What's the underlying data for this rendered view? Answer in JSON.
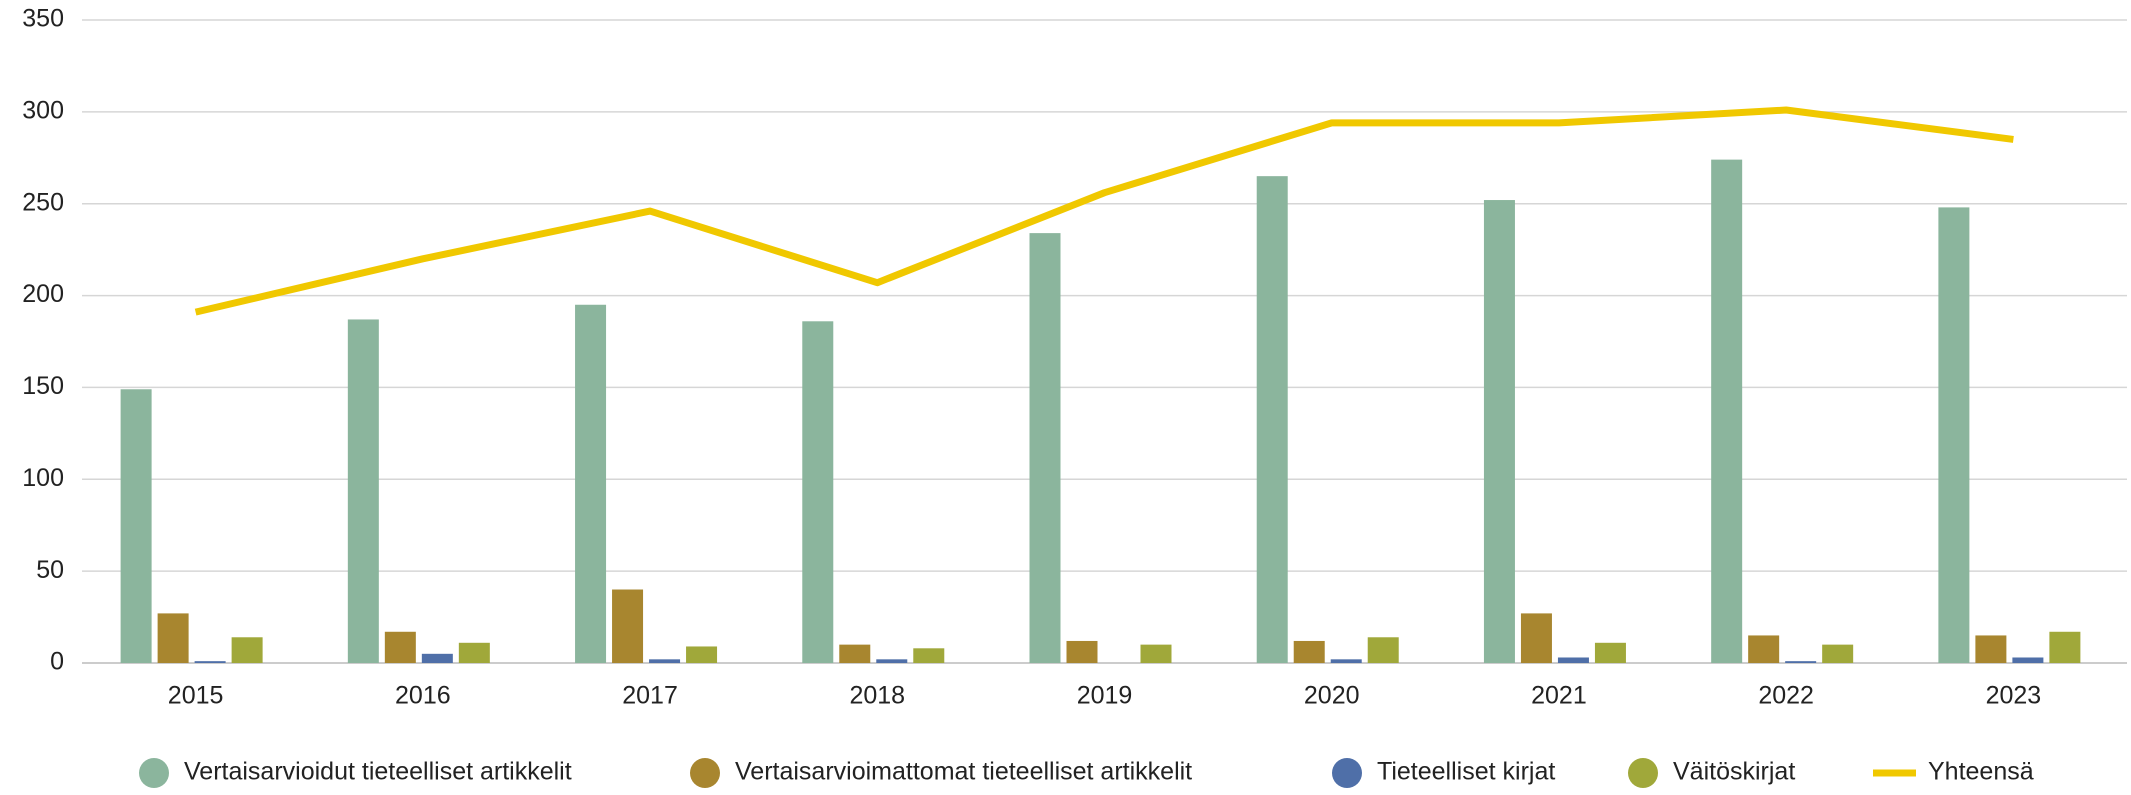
{
  "chart_data": {
    "type": "bar",
    "categories": [
      "2015",
      "2016",
      "2017",
      "2018",
      "2019",
      "2020",
      "2021",
      "2022",
      "2023"
    ],
    "series": [
      {
        "name": "Vertaisarvioidut tieteelliset artikkelit",
        "color": "#8bb59d",
        "type": "bar",
        "values": [
          149,
          187,
          195,
          186,
          234,
          265,
          252,
          274,
          248
        ]
      },
      {
        "name": "Vertaisarvioimattomat tieteelliset artikkelit",
        "color": "#a8862f",
        "type": "bar",
        "values": [
          27,
          17,
          40,
          10,
          12,
          12,
          27,
          15,
          15
        ]
      },
      {
        "name": "Tieteelliset kirjat",
        "color": "#4f6fa8",
        "type": "bar",
        "values": [
          1,
          5,
          2,
          2,
          0,
          2,
          3,
          1,
          3
        ]
      },
      {
        "name": "Väitöskirjat",
        "color": "#a0a83a",
        "type": "bar",
        "values": [
          14,
          11,
          9,
          8,
          10,
          14,
          11,
          10,
          17
        ]
      },
      {
        "name": "Yhteensä",
        "color": "#f0c800",
        "type": "line",
        "values": [
          191,
          220,
          246,
          207,
          256,
          294,
          294,
          301,
          285
        ]
      }
    ],
    "ylim": [
      0,
      350
    ],
    "yticks": [
      0,
      50,
      100,
      150,
      200,
      250,
      300,
      350
    ],
    "grid": true,
    "legend": "bottom"
  }
}
